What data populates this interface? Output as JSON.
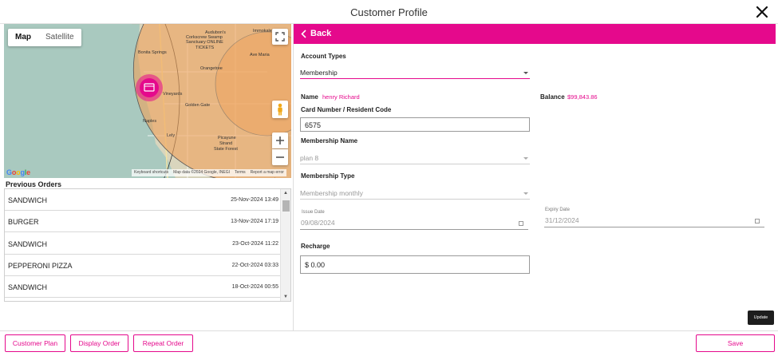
{
  "header": {
    "title": "Customer Profile",
    "close_icon": "close-icon"
  },
  "map": {
    "tabs": {
      "map": "Map",
      "satellite": "Satellite"
    },
    "labels": [
      "Audubon's",
      "Corkscrew Swamp",
      "Sanctuary ONLINE",
      "TICKETS",
      "Bonita Springs",
      "Ave Maria",
      "Orangetree",
      "Vineyards",
      "Golden Gate",
      "Naples",
      "Lely",
      "Immokalee",
      "Picayune",
      "Strand",
      "State Forest"
    ],
    "footer": {
      "shortcuts": "Keyboard shortcuts",
      "data": "Map data ©2024 Google, INEGI",
      "terms": "Terms",
      "report": "Report a map error"
    },
    "logo": "Google",
    "marker_color": "#e5098c"
  },
  "orders": {
    "title": "Previous Orders",
    "rows": [
      {
        "name": "SANDWICH",
        "date": "25-Nov-2024 13:49"
      },
      {
        "name": "BURGER",
        "date": "13-Nov-2024 17:19"
      },
      {
        "name": "SANDWICH",
        "date": "23-Oct-2024 11:22"
      },
      {
        "name": "PEPPERONI PIZZA",
        "date": "22-Oct-2024 03:33"
      },
      {
        "name": "SANDWICH",
        "date": "18-Oct-2024 00:55"
      }
    ]
  },
  "panel": {
    "back_label": "Back",
    "account_types_label": "Account Types",
    "account_type_value": "Membership",
    "name_label": "Name",
    "name_value": "henry Richard",
    "balance_label": "Balance",
    "balance_value": "$99,843.86",
    "card_label": "Card Number / Resident Code",
    "card_value": "6575",
    "membership_name_label": "Membership Name",
    "membership_name_value": "plan 8",
    "membership_type_label": "Membership Type",
    "membership_type_value": "Membership monthly",
    "issue_date_label": "Issue Date",
    "issue_date_value": "09/08/2024",
    "expiry_date_label": "Expiry Date",
    "expiry_date_value": "31/12/2024",
    "recharge_label": "Recharge",
    "recharge_value": "$ 0.00",
    "update_label": "Update"
  },
  "footer": {
    "customer_plan": "Customer Plan",
    "display_order": "Display Order",
    "repeat_order": "Repeat Order",
    "save": "Save"
  },
  "colors": {
    "accent": "#e5098c",
    "dark_button": "#1d1d1d"
  }
}
